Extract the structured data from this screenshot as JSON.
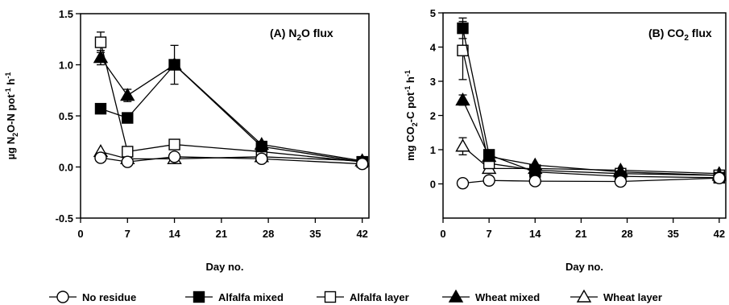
{
  "legend": [
    {
      "series_key": "no_residue",
      "label": "No residue",
      "marker": "circle",
      "filled": false
    },
    {
      "series_key": "alfalfa_mixed",
      "label": "Alfalfa mixed",
      "marker": "square",
      "filled": true
    },
    {
      "series_key": "alfalfa_layer",
      "label": "Alfalfa layer",
      "marker": "square",
      "filled": false
    },
    {
      "series_key": "wheat_mixed",
      "label": "Wheat mixed",
      "marker": "triangle",
      "filled": true
    },
    {
      "series_key": "wheat_layer",
      "label": "Wheat layer",
      "marker": "triangle",
      "filled": false
    }
  ],
  "chart_data": [
    {
      "type": "line",
      "panel": "A",
      "title": {
        "pre": "(A) N",
        "sub": "2",
        "post": "O flux"
      },
      "xlabel": "Day no.",
      "ylabel": {
        "pre": "µg N",
        "sub": "2",
        "mid": "O-N pot",
        "sup1": "-1",
        "mid2": " h",
        "sup2": "-1"
      },
      "xlim": [
        0,
        43
      ],
      "ylim": [
        -0.5,
        1.5
      ],
      "xticks": [
        0,
        7,
        14,
        21,
        28,
        35,
        42
      ],
      "yticks": [
        -0.5,
        0.0,
        0.5,
        1.0,
        1.5
      ],
      "ytick_labels": [
        "-0.5",
        "0.0",
        "0.5",
        "1.0",
        "1.5"
      ],
      "x": [
        3,
        7,
        14,
        27,
        42
      ],
      "series": [
        {
          "key": "no_residue",
          "name": "No residue",
          "values": [
            0.09,
            0.05,
            0.1,
            0.08,
            0.03
          ],
          "err": [
            0,
            0,
            0,
            0,
            0
          ]
        },
        {
          "key": "alfalfa_mixed",
          "name": "Alfalfa mixed",
          "values": [
            0.57,
            0.48,
            1.0,
            0.2,
            0.05
          ],
          "err": [
            0,
            0,
            0.19,
            0,
            0
          ]
        },
        {
          "key": "alfalfa_layer",
          "name": "Alfalfa layer",
          "values": [
            1.22,
            0.15,
            0.22,
            0.15,
            0.05
          ],
          "err": [
            0.1,
            0,
            0,
            0,
            0
          ]
        },
        {
          "key": "wheat_mixed",
          "name": "Wheat mixed",
          "values": [
            1.07,
            0.7,
            1.0,
            0.22,
            0.06
          ],
          "err": [
            0.07,
            0.06,
            0,
            0,
            0
          ]
        },
        {
          "key": "wheat_layer",
          "name": "Wheat layer",
          "values": [
            0.15,
            0.08,
            0.08,
            0.1,
            0.06
          ],
          "err": [
            0,
            0,
            0,
            0,
            0
          ]
        }
      ]
    },
    {
      "type": "line",
      "panel": "B",
      "title": {
        "pre": "(B) CO",
        "sub": "2",
        "post": " flux"
      },
      "xlabel": "Day no.",
      "ylabel": {
        "pre": "mg CO",
        "sub": "2",
        "mid": "-C pot",
        "sup1": "-1",
        "mid2": " h",
        "sup2": "-1"
      },
      "xlim": [
        0,
        43
      ],
      "ylim": [
        -1,
        5
      ],
      "xticks": [
        0,
        7,
        14,
        21,
        28,
        35,
        42
      ],
      "yticks": [
        0,
        1,
        2,
        3,
        4,
        5
      ],
      "ytick_labels": [
        "0",
        "1",
        "2",
        "3",
        "4",
        "5"
      ],
      "x": [
        3,
        7,
        14,
        27,
        42
      ],
      "series": [
        {
          "key": "no_residue",
          "name": "No residue",
          "values": [
            0.02,
            0.1,
            0.08,
            0.07,
            0.17
          ],
          "err": [
            0,
            0,
            0,
            0,
            0
          ]
        },
        {
          "key": "alfalfa_mixed",
          "name": "Alfalfa mixed",
          "values": [
            4.55,
            0.85,
            0.35,
            0.22,
            0.18
          ],
          "err": [
            0.3,
            0,
            0,
            0,
            0
          ]
        },
        {
          "key": "alfalfa_layer",
          "name": "Alfalfa layer",
          "values": [
            3.9,
            0.6,
            0.4,
            0.3,
            0.25
          ],
          "err": [
            0.85,
            0,
            0,
            0,
            0
          ]
        },
        {
          "key": "wheat_mixed",
          "name": "Wheat mixed",
          "values": [
            2.45,
            0.8,
            0.55,
            0.35,
            0.25
          ],
          "err": [
            0.15,
            0,
            0,
            0,
            0
          ]
        },
        {
          "key": "wheat_layer",
          "name": "Wheat layer",
          "values": [
            1.1,
            0.45,
            0.45,
            0.4,
            0.3
          ],
          "err": [
            0.25,
            0,
            0,
            0,
            0
          ]
        }
      ]
    }
  ]
}
